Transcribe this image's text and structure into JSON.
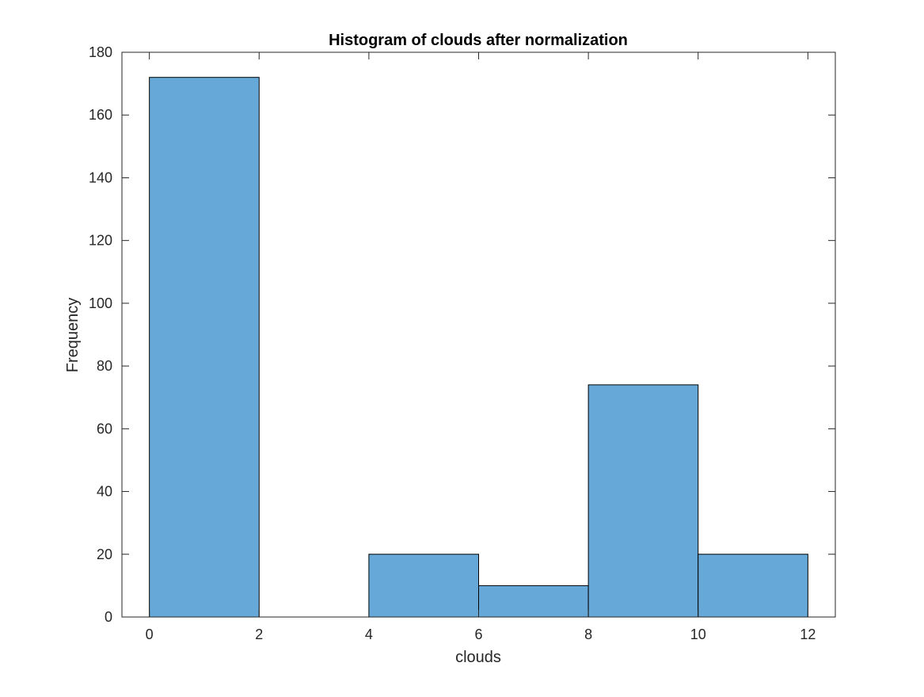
{
  "chart_data": {
    "type": "bar",
    "title": "Histogram of clouds after normalization",
    "xlabel": "clouds",
    "ylabel": "Frequency",
    "bin_edges": [
      0,
      2,
      4,
      6,
      8,
      10,
      12
    ],
    "values": [
      172,
      0,
      20,
      10,
      74,
      20
    ],
    "xlim": [
      -0.5,
      12.5
    ],
    "ylim": [
      0,
      180
    ],
    "xticks": [
      0,
      2,
      4,
      6,
      8,
      10,
      12
    ],
    "yticks": [
      0,
      20,
      40,
      60,
      80,
      100,
      120,
      140,
      160,
      180
    ],
    "bar_color": "#66a9d8",
    "edge_color": "#000000",
    "grid": false,
    "box": true
  }
}
